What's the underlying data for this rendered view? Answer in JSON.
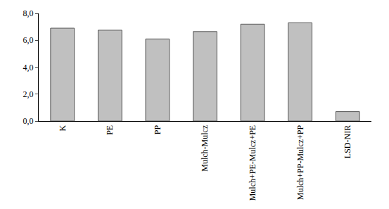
{
  "chart_data": {
    "type": "bar",
    "categories": [
      "K",
      "PE",
      "PP",
      "Mulch-Mulcz",
      "Mulch+PE-Mulcz+PE",
      "Mulch+PP-Mulcz+PP",
      "LSD-NIR"
    ],
    "values": [
      6.9,
      6.75,
      6.1,
      6.65,
      7.2,
      7.3,
      0.7
    ],
    "color": "#c0c0c0",
    "ylim": [
      0,
      8
    ],
    "yticks": [
      {
        "value": 0,
        "label": "0,0"
      },
      {
        "value": 2,
        "label": "2,0"
      },
      {
        "value": 4,
        "label": "4,0"
      },
      {
        "value": 6,
        "label": "6,0"
      },
      {
        "value": 8,
        "label": "8,0"
      }
    ],
    "grid": false
  }
}
